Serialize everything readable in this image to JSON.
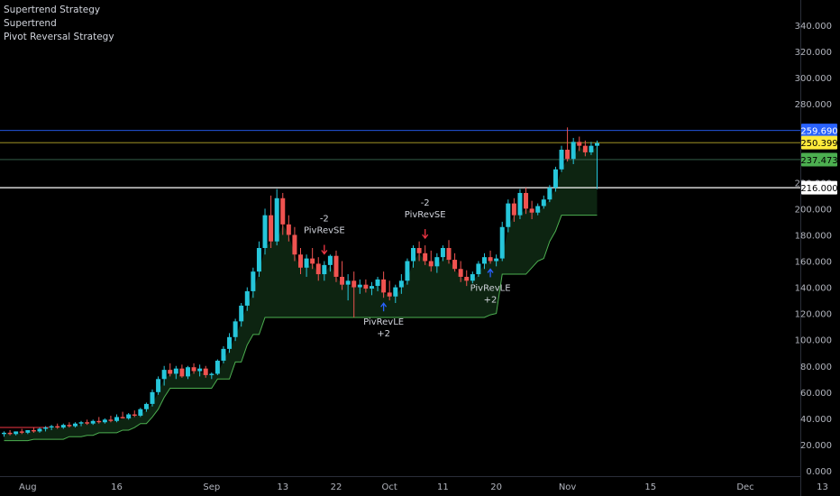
{
  "legend": [
    "Supertrend Strategy",
    "Supertrend",
    "Pivot Reversal Strategy"
  ],
  "colors": {
    "background": "#000000",
    "up_candle": "#26c6da",
    "down_candle": "#ef5350",
    "supertrend_line": "#4caf50",
    "supertrend_fill": "#0f2a14",
    "text": "#d1d4dc",
    "axis_text": "#b2b5be",
    "long_arrow": "#2962ff",
    "short_arrow": "#f23645",
    "tag_blue": "#2962ff",
    "tag_yellow": "#ffeb3b",
    "tag_green": "#4caf50",
    "tag_white": "#ffffff",
    "hline_blue": "#2962ff",
    "hline_yellow": "#b8a82a",
    "hline_green": "#3d6b53",
    "hline_white": "#ffffff",
    "old_red_line": "#f23645"
  },
  "chart_data": {
    "type": "candlestick",
    "y_axis": {
      "ticks": [
        0,
        20,
        40,
        60,
        80,
        100,
        120,
        140,
        160,
        180,
        200,
        220,
        280,
        300,
        320,
        340
      ],
      "tick_labels": [
        "0.000",
        "20.000",
        "40.000",
        "60.000",
        "80.000",
        "100.000",
        "120.000",
        "140.000",
        "160.000",
        "180.000",
        "200.000",
        "220.000",
        "280.000",
        "300.000",
        "320.000",
        "340.000"
      ],
      "range": [
        0,
        355
      ]
    },
    "x_axis": {
      "labels": [
        {
          "text": "Aug",
          "index": 4
        },
        {
          "text": "16",
          "index": 19
        },
        {
          "text": "Sep",
          "index": 35
        },
        {
          "text": "13",
          "index": 47
        },
        {
          "text": "22",
          "index": 56
        },
        {
          "text": "Oct",
          "index": 65
        },
        {
          "text": "11",
          "index": 74
        },
        {
          "text": "20",
          "index": 83
        },
        {
          "text": "Nov",
          "index": 95
        },
        {
          "text": "15",
          "index": 109
        },
        {
          "text": "Dec",
          "index": 125
        },
        {
          "text": "13",
          "index": 138
        }
      ],
      "visible_slots": 147
    },
    "price_tags": [
      {
        "value": 259.69,
        "label": "259.690",
        "style": "blue"
      },
      {
        "value": 250.399,
        "label": "250.399",
        "style": "yellow"
      },
      {
        "value": 237.473,
        "label": "237.473",
        "style": "green"
      },
      {
        "value": 216.0,
        "label": "216.000",
        "style": "white"
      }
    ],
    "candles": [
      {
        "o": 28,
        "h": 30,
        "l": 26,
        "c": 29
      },
      {
        "o": 29,
        "h": 31,
        "l": 27,
        "c": 28
      },
      {
        "o": 28,
        "h": 30,
        "l": 27,
        "c": 30
      },
      {
        "o": 30,
        "h": 32,
        "l": 28,
        "c": 29
      },
      {
        "o": 29,
        "h": 31,
        "l": 28,
        "c": 31
      },
      {
        "o": 31,
        "h": 33,
        "l": 29,
        "c": 30
      },
      {
        "o": 30,
        "h": 33,
        "l": 29,
        "c": 32
      },
      {
        "o": 32,
        "h": 34,
        "l": 30,
        "c": 33
      },
      {
        "o": 33,
        "h": 35,
        "l": 31,
        "c": 34
      },
      {
        "o": 34,
        "h": 36,
        "l": 32,
        "c": 33
      },
      {
        "o": 33,
        "h": 36,
        "l": 32,
        "c": 35
      },
      {
        "o": 35,
        "h": 37,
        "l": 33,
        "c": 34
      },
      {
        "o": 34,
        "h": 37,
        "l": 33,
        "c": 36
      },
      {
        "o": 36,
        "h": 38,
        "l": 34,
        "c": 37
      },
      {
        "o": 37,
        "h": 39,
        "l": 35,
        "c": 36
      },
      {
        "o": 36,
        "h": 39,
        "l": 35,
        "c": 38
      },
      {
        "o": 38,
        "h": 41,
        "l": 36,
        "c": 37
      },
      {
        "o": 37,
        "h": 40,
        "l": 36,
        "c": 39
      },
      {
        "o": 39,
        "h": 42,
        "l": 37,
        "c": 38
      },
      {
        "o": 38,
        "h": 43,
        "l": 37,
        "c": 41
      },
      {
        "o": 41,
        "h": 45,
        "l": 40,
        "c": 40
      },
      {
        "o": 40,
        "h": 44,
        "l": 39,
        "c": 43
      },
      {
        "o": 43,
        "h": 46,
        "l": 41,
        "c": 42
      },
      {
        "o": 42,
        "h": 48,
        "l": 41,
        "c": 47
      },
      {
        "o": 47,
        "h": 52,
        "l": 45,
        "c": 51
      },
      {
        "o": 51,
        "h": 62,
        "l": 49,
        "c": 60
      },
      {
        "o": 60,
        "h": 72,
        "l": 58,
        "c": 70
      },
      {
        "o": 70,
        "h": 80,
        "l": 65,
        "c": 77
      },
      {
        "o": 77,
        "h": 82,
        "l": 72,
        "c": 74
      },
      {
        "o": 74,
        "h": 80,
        "l": 70,
        "c": 78
      },
      {
        "o": 78,
        "h": 81,
        "l": 71,
        "c": 72
      },
      {
        "o": 72,
        "h": 80,
        "l": 70,
        "c": 79
      },
      {
        "o": 79,
        "h": 82,
        "l": 74,
        "c": 76
      },
      {
        "o": 76,
        "h": 81,
        "l": 72,
        "c": 78
      },
      {
        "o": 78,
        "h": 80,
        "l": 71,
        "c": 73
      },
      {
        "o": 73,
        "h": 75,
        "l": 70,
        "c": 74
      },
      {
        "o": 74,
        "h": 85,
        "l": 73,
        "c": 84
      },
      {
        "o": 84,
        "h": 95,
        "l": 82,
        "c": 93
      },
      {
        "o": 93,
        "h": 105,
        "l": 90,
        "c": 102
      },
      {
        "o": 102,
        "h": 116,
        "l": 99,
        "c": 114
      },
      {
        "o": 114,
        "h": 128,
        "l": 110,
        "c": 126
      },
      {
        "o": 126,
        "h": 140,
        "l": 122,
        "c": 137
      },
      {
        "o": 137,
        "h": 155,
        "l": 132,
        "c": 152
      },
      {
        "o": 152,
        "h": 175,
        "l": 148,
        "c": 170
      },
      {
        "o": 170,
        "h": 200,
        "l": 165,
        "c": 195
      },
      {
        "o": 195,
        "h": 210,
        "l": 170,
        "c": 175
      },
      {
        "o": 175,
        "h": 215,
        "l": 172,
        "c": 208
      },
      {
        "o": 208,
        "h": 212,
        "l": 180,
        "c": 188
      },
      {
        "o": 188,
        "h": 195,
        "l": 175,
        "c": 180
      },
      {
        "o": 180,
        "h": 186,
        "l": 160,
        "c": 165
      },
      {
        "o": 165,
        "h": 170,
        "l": 150,
        "c": 155
      },
      {
        "o": 155,
        "h": 165,
        "l": 148,
        "c": 162
      },
      {
        "o": 162,
        "h": 170,
        "l": 154,
        "c": 158
      },
      {
        "o": 158,
        "h": 163,
        "l": 145,
        "c": 150
      },
      {
        "o": 150,
        "h": 160,
        "l": 145,
        "c": 157
      },
      {
        "o": 157,
        "h": 165,
        "l": 152,
        "c": 164
      },
      {
        "o": 164,
        "h": 168,
        "l": 144,
        "c": 148
      },
      {
        "o": 148,
        "h": 160,
        "l": 138,
        "c": 142
      },
      {
        "o": 142,
        "h": 150,
        "l": 130,
        "c": 145
      },
      {
        "o": 145,
        "h": 152,
        "l": 117,
        "c": 140
      },
      {
        "o": 140,
        "h": 146,
        "l": 135,
        "c": 142
      },
      {
        "o": 142,
        "h": 146,
        "l": 136,
        "c": 139
      },
      {
        "o": 139,
        "h": 144,
        "l": 134,
        "c": 141
      },
      {
        "o": 141,
        "h": 148,
        "l": 137,
        "c": 146
      },
      {
        "o": 146,
        "h": 152,
        "l": 132,
        "c": 136
      },
      {
        "o": 136,
        "h": 145,
        "l": 130,
        "c": 133
      },
      {
        "o": 133,
        "h": 142,
        "l": 128,
        "c": 140
      },
      {
        "o": 140,
        "h": 150,
        "l": 135,
        "c": 145
      },
      {
        "o": 145,
        "h": 162,
        "l": 142,
        "c": 160
      },
      {
        "o": 160,
        "h": 172,
        "l": 155,
        "c": 170
      },
      {
        "o": 170,
        "h": 175,
        "l": 160,
        "c": 166
      },
      {
        "o": 166,
        "h": 172,
        "l": 157,
        "c": 160
      },
      {
        "o": 160,
        "h": 168,
        "l": 152,
        "c": 156
      },
      {
        "o": 156,
        "h": 166,
        "l": 151,
        "c": 163
      },
      {
        "o": 163,
        "h": 172,
        "l": 160,
        "c": 170
      },
      {
        "o": 170,
        "h": 176,
        "l": 158,
        "c": 161
      },
      {
        "o": 161,
        "h": 166,
        "l": 152,
        "c": 154
      },
      {
        "o": 154,
        "h": 160,
        "l": 144,
        "c": 148
      },
      {
        "o": 148,
        "h": 153,
        "l": 141,
        "c": 145
      },
      {
        "o": 145,
        "h": 152,
        "l": 143,
        "c": 150
      },
      {
        "o": 150,
        "h": 160,
        "l": 148,
        "c": 158
      },
      {
        "o": 158,
        "h": 166,
        "l": 154,
        "c": 163
      },
      {
        "o": 163,
        "h": 168,
        "l": 158,
        "c": 160
      },
      {
        "o": 160,
        "h": 165,
        "l": 156,
        "c": 162
      },
      {
        "o": 162,
        "h": 190,
        "l": 160,
        "c": 186
      },
      {
        "o": 186,
        "h": 207,
        "l": 182,
        "c": 204
      },
      {
        "o": 204,
        "h": 208,
        "l": 190,
        "c": 195
      },
      {
        "o": 195,
        "h": 215,
        "l": 192,
        "c": 212
      },
      {
        "o": 212,
        "h": 216,
        "l": 196,
        "c": 200
      },
      {
        "o": 200,
        "h": 206,
        "l": 192,
        "c": 197
      },
      {
        "o": 197,
        "h": 204,
        "l": 195,
        "c": 202
      },
      {
        "o": 202,
        "h": 210,
        "l": 200,
        "c": 207
      },
      {
        "o": 207,
        "h": 218,
        "l": 205,
        "c": 216
      },
      {
        "o": 216,
        "h": 232,
        "l": 213,
        "c": 230
      },
      {
        "o": 230,
        "h": 248,
        "l": 228,
        "c": 245
      },
      {
        "o": 245,
        "h": 262,
        "l": 236,
        "c": 238
      },
      {
        "o": 238,
        "h": 254,
        "l": 234,
        "c": 251
      },
      {
        "o": 251,
        "h": 255,
        "l": 244,
        "c": 248
      },
      {
        "o": 248,
        "h": 252,
        "l": 240,
        "c": 243
      },
      {
        "o": 243,
        "h": 251,
        "l": 241,
        "c": 248
      },
      {
        "o": 248,
        "h": 252,
        "l": 215,
        "c": 250
      }
    ],
    "supertrend": [
      23,
      23,
      23,
      23,
      23,
      24,
      24,
      24,
      24,
      24,
      24,
      26,
      26,
      26,
      27,
      27,
      29,
      29,
      29,
      29,
      31,
      31,
      33,
      36,
      36,
      41,
      47,
      56,
      63,
      63,
      63,
      63,
      63,
      63,
      63,
      63,
      70,
      70,
      70,
      83,
      83,
      96,
      104,
      104,
      117,
      117,
      117,
      117,
      117,
      117,
      117,
      117,
      117,
      117,
      117,
      117,
      117,
      117,
      117,
      117,
      117,
      117,
      117,
      117,
      117,
      117,
      117,
      117,
      117,
      117,
      117,
      117,
      117,
      117,
      117,
      117,
      117,
      117,
      117,
      117,
      117,
      117,
      119,
      120,
      150,
      150,
      150,
      150,
      150,
      155,
      160,
      162,
      175,
      183,
      195,
      195,
      195,
      195,
      195,
      195,
      195
    ],
    "supertrend_start_index": 22,
    "signals": [
      {
        "type": "short",
        "index": 54,
        "lines": [
          "-2",
          "PivRevSE"
        ]
      },
      {
        "type": "long",
        "index": 64,
        "lines": [
          "PivRevLE",
          "+2"
        ]
      },
      {
        "type": "short",
        "index": 71,
        "lines": [
          "-2",
          "PivRevSE"
        ]
      },
      {
        "type": "long",
        "index": 82,
        "lines": [
          "PivRevLE",
          "+2"
        ]
      }
    ],
    "horizontal_lines": [
      {
        "value": 259.69,
        "style": "blue"
      },
      {
        "value": 250.399,
        "style": "yellow"
      },
      {
        "value": 237.473,
        "style": "green"
      },
      {
        "value": 216.0,
        "style": "white"
      }
    ]
  }
}
